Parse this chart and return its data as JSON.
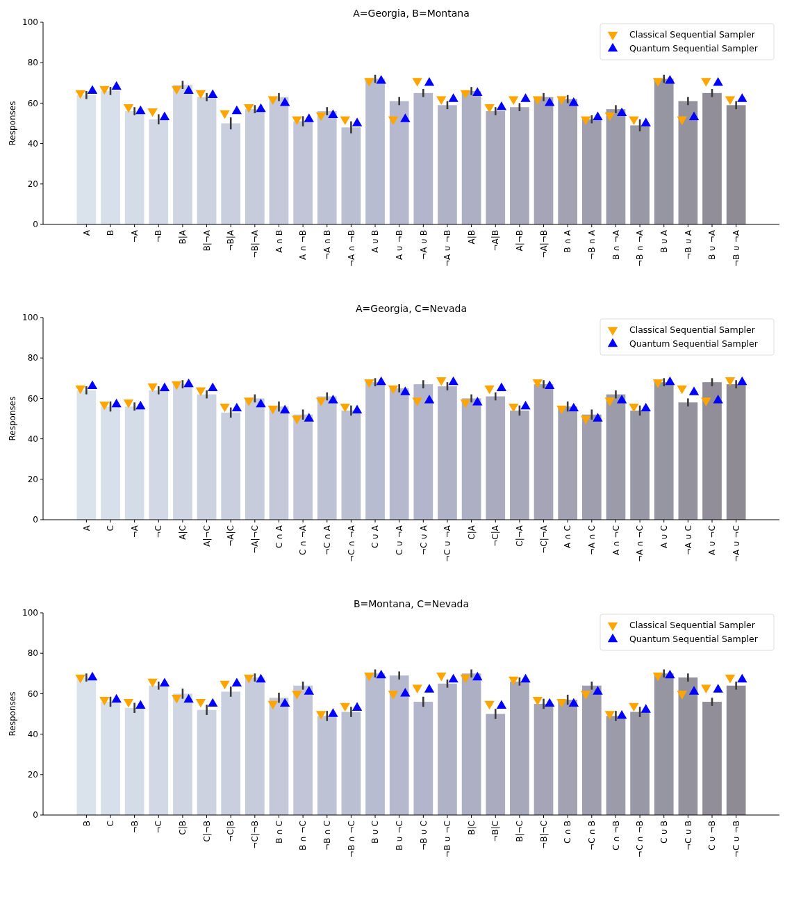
{
  "chart_data": [
    {
      "type": "bar",
      "title": "A=Georgia, B=Montana",
      "ylabel": "Responses",
      "ylim": [
        0,
        100
      ],
      "yticks": [
        0,
        20,
        40,
        60,
        80,
        100
      ],
      "legend": "top right",
      "categories": [
        "A",
        "B",
        "¬A",
        "¬B",
        "B|A",
        "B|¬A",
        "¬B|A",
        "¬B|¬A",
        "A ∩ B",
        "A ∩ ¬B",
        "¬A ∩ B",
        "¬A ∩ ¬B",
        "A ∪ B",
        "A ∪ ¬B",
        "¬A ∪ B",
        "¬A ∪ ¬B",
        "A|B",
        "¬A|B",
        "A|¬B",
        "¬A|¬B",
        "B ∩ A",
        "¬B ∩ A",
        "B ∩ ¬A",
        "¬B ∩ ¬A",
        "B ∪ A",
        "¬B ∪ A",
        "B ∪ ¬A",
        "¬B ∪ ¬A"
      ],
      "series": [
        {
          "type": "bar",
          "colors": [
            "#dae2ec",
            "#d7dfea",
            "#d4dce7",
            "#d2d8e5",
            "#cfd5e3",
            "#ccd2e0",
            "#c9cfde",
            "#c6ccdc",
            "#c4c8d9",
            "#c1c5d7",
            "#bec2d5",
            "#bbbfd2",
            "#b8bcd0",
            "#b6b8ce",
            "#b3b5cc",
            "#b0b2c8",
            "#adafc4",
            "#aaabbf",
            "#a8a8bb",
            "#a5a5b7",
            "#a2a2b3",
            "#9f9eae",
            "#9c9baa",
            "#9998a6",
            "#9695a2",
            "#94929d",
            "#918e99",
            "#8e8b95"
          ],
          "values": [
            64,
            66,
            56,
            52,
            69,
            63,
            50,
            57,
            63,
            51,
            56,
            48,
            72,
            61,
            65,
            59,
            66,
            56,
            58,
            63,
            62,
            52,
            57,
            49,
            72,
            61,
            65,
            59
          ],
          "errors": [
            2,
            2,
            2,
            2.5,
            2,
            2,
            3,
            2,
            2,
            2.5,
            2,
            3,
            2,
            2,
            2,
            2,
            2,
            2,
            2,
            2,
            2,
            2,
            2,
            3,
            2,
            2,
            2,
            2
          ]
        },
        {
          "type": "scatter",
          "name": "Classical Sequential Sampler",
          "color": "#ffa500",
          "marker": "triangle_down",
          "x": [
            "A",
            "B",
            "¬A",
            "¬B",
            "B|A",
            "B|¬A",
            "¬B|A",
            "¬B|¬A",
            "A ∩ B",
            "A ∩ ¬B",
            "¬A ∩ B",
            "¬A ∩ ¬B",
            "A ∪ B",
            "A ∪ ¬B",
            "¬A ∪ B",
            "¬A ∪ ¬B",
            "A|B",
            "¬A|B",
            "A|¬B",
            "¬A|¬B",
            "B ∩ A",
            "¬B ∩ A",
            "B ∩ ¬A",
            "¬B ∩ ¬A",
            "B ∪ A",
            "¬B ∪ A",
            "B ∪ ¬A",
            "¬B ∪ ¬A"
          ],
          "values": [
            65,
            67,
            58,
            56,
            67,
            65,
            55,
            58,
            62,
            52,
            54,
            52,
            71,
            52,
            71,
            62,
            65,
            58,
            62,
            62,
            62,
            52,
            54,
            52,
            71,
            52,
            71,
            62
          ]
        },
        {
          "type": "scatter",
          "name": "Quantum Sequential Sampler",
          "color": "#0000ff",
          "marker": "triangle",
          "x": [
            "A",
            "B",
            "¬A",
            "¬B",
            "B|A",
            "B|¬A",
            "¬B|A",
            "¬B|¬A",
            "A ∩ B",
            "A ∩ ¬B",
            "¬A ∩ B",
            "¬A ∩ ¬B",
            "A ∪ B",
            "A ∪ ¬B",
            "¬A ∪ B",
            "¬A ∪ ¬B",
            "A|B",
            "¬A|B",
            "A|¬B",
            "¬A|¬B",
            "B ∩ A",
            "¬B ∩ A",
            "B ∩ ¬A",
            "¬B ∩ ¬A",
            "B ∪ A",
            "¬B ∪ A",
            "B ∪ ¬A",
            "¬B ∪ ¬A"
          ],
          "values": [
            66,
            68,
            56,
            53,
            66,
            64,
            56,
            57,
            60,
            52,
            54,
            50,
            71,
            52,
            70,
            62,
            65,
            58,
            62,
            60,
            60,
            53,
            55,
            50,
            71,
            53,
            70,
            62
          ]
        }
      ]
    },
    {
      "type": "bar",
      "title": "A=Georgia, C=Nevada",
      "ylabel": "Responses",
      "ylim": [
        0,
        100
      ],
      "yticks": [
        0,
        20,
        40,
        60,
        80,
        100
      ],
      "legend": "top right",
      "categories": [
        "A",
        "C",
        "¬A",
        "¬C",
        "A|C",
        "A|¬C",
        "¬A|C",
        "¬A|¬C",
        "C ∩ A",
        "C ∩ ¬A",
        "¬C ∩ A",
        "¬C ∩ ¬A",
        "C ∪ A",
        "C ∪ ¬A",
        "¬C ∪ A",
        "¬C ∪ ¬A",
        "C|A",
        "¬C|A",
        "C|¬A",
        "¬C|¬A",
        "A ∩ C",
        "¬A ∩ C",
        "A ∩ ¬C",
        "¬A ∩ ¬C",
        "A ∪ C",
        "¬A ∪ C",
        "A ∪ ¬C",
        "¬A ∪ ¬C"
      ],
      "series": [
        {
          "type": "bar",
          "colors": [
            "#dae2ec",
            "#d7dfea",
            "#d4dce7",
            "#d2d8e5",
            "#cfd5e3",
            "#ccd2e0",
            "#c9cfde",
            "#c6ccdc",
            "#c4c8d9",
            "#c1c5d7",
            "#bec2d5",
            "#bbbfd2",
            "#b8bcd0",
            "#b6b8ce",
            "#b3b5cc",
            "#b0b2c8",
            "#adafc4",
            "#aaabbf",
            "#a8a8bb",
            "#a5a5b7",
            "#a2a2b3",
            "#9f9eae",
            "#9c9baa",
            "#9998a6",
            "#9695a2",
            "#94929d",
            "#918e99",
            "#8e8b95"
          ],
          "values": [
            64,
            56,
            56,
            64,
            67,
            62,
            53,
            60,
            56,
            52,
            61,
            54,
            68,
            65,
            67,
            66,
            60,
            61,
            54,
            67,
            56,
            52,
            62,
            54,
            68,
            58,
            68,
            67
          ],
          "errors": [
            2,
            2.5,
            2,
            2,
            2,
            2,
            2.5,
            2,
            2.5,
            2.5,
            2,
            2.5,
            2,
            2,
            2,
            2,
            2,
            2,
            2.5,
            2,
            2.5,
            2.5,
            2,
            2.5,
            2,
            2,
            2,
            2
          ]
        },
        {
          "type": "scatter",
          "name": "Classical Sequential Sampler",
          "color": "#ffa500",
          "marker": "triangle_down",
          "x": [
            "A",
            "C",
            "¬A",
            "¬C",
            "A|C",
            "A|¬C",
            "¬A|C",
            "¬A|¬C",
            "C ∩ A",
            "C ∩ ¬A",
            "¬C ∩ A",
            "¬C ∩ ¬A",
            "C ∪ A",
            "C ∪ ¬A",
            "¬C ∪ A",
            "¬C ∪ ¬A",
            "C|A",
            "¬C|A",
            "C|¬A",
            "¬C|¬A",
            "A ∩ C",
            "¬A ∩ C",
            "A ∩ ¬C",
            "¬A ∩ ¬C",
            "A ∪ C",
            "¬A ∪ C",
            "A ∪ ¬C",
            "¬A ∪ ¬C"
          ],
          "values": [
            65,
            57,
            58,
            66,
            67,
            64,
            56,
            59,
            55,
            50,
            59,
            56,
            68,
            65,
            59,
            69,
            58,
            65,
            56,
            68,
            55,
            50,
            59,
            56,
            68,
            65,
            59,
            69
          ]
        },
        {
          "type": "scatter",
          "name": "Quantum Sequential Sampler",
          "color": "#0000ff",
          "marker": "triangle",
          "x": [
            "A",
            "C",
            "¬A",
            "¬C",
            "A|C",
            "A|¬C",
            "¬A|C",
            "¬A|¬C",
            "C ∩ A",
            "C ∩ ¬A",
            "¬C ∩ A",
            "¬C ∩ ¬A",
            "C ∪ A",
            "C ∪ ¬A",
            "¬C ∪ A",
            "¬C ∪ ¬A",
            "C|A",
            "¬C|A",
            "C|¬A",
            "¬C|¬A",
            "A ∩ C",
            "¬A ∩ C",
            "A ∩ ¬C",
            "¬A ∩ ¬C",
            "A ∪ C",
            "¬A ∪ C",
            "A ∪ ¬C",
            "¬A ∪ ¬C"
          ],
          "values": [
            66,
            57,
            56,
            65,
            67,
            65,
            55,
            57,
            54,
            50,
            59,
            54,
            68,
            63,
            59,
            68,
            58,
            65,
            56,
            66,
            55,
            50,
            59,
            55,
            68,
            63,
            59,
            68
          ]
        }
      ]
    },
    {
      "type": "bar",
      "title": "B=Montana, C=Nevada",
      "ylabel": "Responses",
      "ylim": [
        0,
        100
      ],
      "yticks": [
        0,
        20,
        40,
        60,
        80,
        100
      ],
      "legend": "top right",
      "categories": [
        "B",
        "C",
        "¬B",
        "¬C",
        "C|B",
        "C|¬B",
        "¬C|B",
        "¬C|¬B",
        "B ∩ C",
        "B ∩ ¬C",
        "¬B ∩ C",
        "¬B ∩ ¬C",
        "B ∪ C",
        "B ∪ ¬C",
        "¬B ∪ C",
        "¬B ∪ ¬C",
        "B|C",
        "¬B|C",
        "B|¬C",
        "¬B|¬C",
        "C ∩ B",
        "¬C ∩ B",
        "C ∩ ¬B",
        "¬C ∩ ¬B",
        "C ∪ B",
        "¬C ∪ B",
        "C ∪ ¬B",
        "¬C ∪ ¬B"
      ],
      "series": [
        {
          "type": "bar",
          "colors": [
            "#dae2ec",
            "#d7dfea",
            "#d4dce7",
            "#d2d8e5",
            "#cfd5e3",
            "#ccd2e0",
            "#c9cfde",
            "#c6ccdc",
            "#c4c8d9",
            "#c1c5d7",
            "#bec2d5",
            "#bbbfd2",
            "#b8bcd0",
            "#b6b8ce",
            "#b3b5cc",
            "#b0b2c8",
            "#adafc4",
            "#aaabbf",
            "#a8a8bb",
            "#a5a5b7",
            "#a2a2b3",
            "#9f9eae",
            "#9c9baa",
            "#9998a6",
            "#9695a2",
            "#94929d",
            "#918e99",
            "#8e8b95"
          ],
          "values": [
            68,
            56,
            53,
            64,
            60,
            52,
            61,
            68,
            58,
            64,
            49,
            51,
            70,
            69,
            56,
            65,
            70,
            50,
            66,
            55,
            57,
            64,
            49,
            51,
            70,
            68,
            56,
            64
          ],
          "errors": [
            2,
            2.5,
            2.5,
            2,
            2.5,
            2.5,
            2.5,
            2,
            2.5,
            2,
            2.5,
            2.5,
            2,
            2,
            2.5,
            2,
            2,
            2.5,
            2,
            2.5,
            2.5,
            2,
            2.5,
            2.5,
            2,
            2,
            2,
            2
          ]
        },
        {
          "type": "scatter",
          "name": "Classical Sequential Sampler",
          "color": "#ffa500",
          "marker": "triangle_down",
          "x": [
            "B",
            "C",
            "¬B",
            "¬C",
            "C|B",
            "C|¬B",
            "¬C|B",
            "¬C|¬B",
            "B ∩ C",
            "B ∩ ¬C",
            "¬B ∩ C",
            "¬B ∩ ¬C",
            "B ∪ C",
            "B ∪ ¬C",
            "¬B ∪ C",
            "¬B ∪ ¬C",
            "B|C",
            "¬B|C",
            "B|¬C",
            "¬B|¬C",
            "C ∩ B",
            "¬C ∩ B",
            "C ∩ ¬B",
            "¬C ∩ ¬B",
            "C ∪ B",
            "¬C ∪ B",
            "C ∪ ¬B",
            "¬C ∪ ¬B"
          ],
          "values": [
            68,
            57,
            56,
            66,
            58,
            56,
            65,
            68,
            55,
            60,
            50,
            54,
            69,
            60,
            63,
            69,
            68,
            55,
            67,
            57,
            56,
            60,
            50,
            54,
            69,
            60,
            63,
            68
          ]
        },
        {
          "type": "scatter",
          "name": "Quantum Sequential Sampler",
          "color": "#0000ff",
          "marker": "triangle",
          "x": [
            "B",
            "C",
            "¬B",
            "¬C",
            "C|B",
            "C|¬B",
            "¬C|B",
            "¬C|¬B",
            "B ∩ C",
            "B ∩ ¬C",
            "¬B ∩ C",
            "¬B ∩ ¬C",
            "B ∪ C",
            "B ∪ ¬C",
            "¬B ∪ C",
            "¬B ∪ ¬C",
            "B|C",
            "¬B|C",
            "B|¬C",
            "¬B|¬C",
            "C ∩ B",
            "¬C ∩ B",
            "C ∩ ¬B",
            "¬C ∩ ¬B",
            "C ∪ B",
            "¬C ∪ B",
            "C ∪ ¬B",
            "¬C ∪ ¬B"
          ],
          "values": [
            68,
            57,
            54,
            65,
            57,
            55,
            65,
            67,
            55,
            61,
            50,
            53,
            69,
            60,
            62,
            67,
            68,
            54,
            67,
            55,
            55,
            61,
            49,
            52,
            69,
            61,
            62,
            67
          ]
        }
      ]
    }
  ]
}
